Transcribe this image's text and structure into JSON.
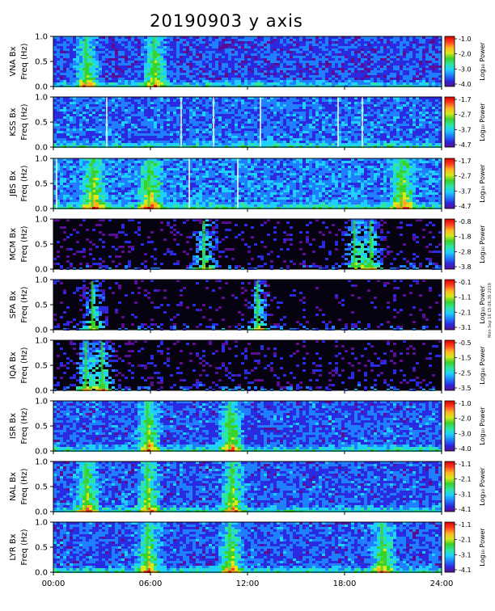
{
  "title": "20190903 y axis",
  "side_note": "Mon Sep 16 15:06:36 2019",
  "chart_data": {
    "type": "heatmap",
    "title": "20190903 y axis",
    "x_tick_labels": [
      "00:00",
      "06:00",
      "12:00",
      "18:00",
      "24:00"
    ],
    "x_ticks_hours": [
      0,
      6,
      12,
      18,
      24
    ],
    "xlim_hours": [
      0,
      24
    ],
    "ylim_hz": [
      0,
      1.0
    ],
    "y_tick_labels": [
      "0.0",
      "0.5",
      "1.0"
    ],
    "y_ticks_hz": [
      0,
      0.5,
      1.0
    ],
    "colorbar_label": "Log₁₀ Power",
    "colormap": [
      "#5a0d92",
      "#2a2ae0",
      "#1f7fff",
      "#1fd0ff",
      "#2ee6a0",
      "#39d12b",
      "#d7e81f",
      "#ffb21f",
      "#ff3b1f",
      "#d80000"
    ],
    "panels": [
      {
        "station": "VNA",
        "label": "VNA Bx",
        "ylabel": "Freq (Hz)",
        "cb_ticks": [
          "-1.0",
          "-2.0",
          "-3.0",
          "-4.0"
        ],
        "cb_range": [
          -4.0,
          -1.0
        ],
        "background_level": 0.18,
        "bright_events_hours": [
          2.0,
          6.2
        ],
        "gap_lines_hours": []
      },
      {
        "station": "KSS",
        "label": "KSS Bx",
        "ylabel": "Freq (Hz)",
        "cb_ticks": [
          "-1.7",
          "-2.7",
          "-3.7",
          "-4.7"
        ],
        "cb_range": [
          -4.7,
          -1.7
        ],
        "background_level": 0.22,
        "bright_events_hours": [],
        "gap_lines_hours": [
          3.3,
          7.9,
          9.9,
          12.8,
          17.6,
          19.1
        ]
      },
      {
        "station": "JBS",
        "label": "JBS Bx",
        "ylabel": "Freq (Hz)",
        "cb_ticks": [
          "-1.7",
          "-2.7",
          "-3.7",
          "-4.7"
        ],
        "cb_range": [
          -4.7,
          -1.7
        ],
        "background_level": 0.25,
        "bright_events_hours": [
          2.4,
          5.9,
          21.5
        ],
        "gap_lines_hours": [
          0.2,
          8.4,
          11.4
        ]
      },
      {
        "station": "MCM",
        "label": "MCM Bx",
        "ylabel": "Freq (Hz)",
        "cb_ticks": [
          "-0.8",
          "-1.8",
          "-2.8",
          "-3.8"
        ],
        "cb_range": [
          -3.8,
          -0.8
        ],
        "background_level": 0.04,
        "bright_events_hours": [
          9.3,
          18.6,
          19.6
        ],
        "gap_lines_hours": []
      },
      {
        "station": "SPA",
        "label": "SPA Bx",
        "ylabel": "Freq (Hz)",
        "cb_ticks": [
          "-0.1",
          "-1.1",
          "-2.1",
          "-3.1"
        ],
        "cb_range": [
          -3.1,
          -0.1
        ],
        "background_level": 0.02,
        "bright_events_hours": [
          2.4,
          12.6
        ],
        "gap_lines_hours": []
      },
      {
        "station": "IQA",
        "label": "IQA Bx",
        "ylabel": "Freq (Hz)",
        "cb_ticks": [
          "-0.5",
          "-1.5",
          "-2.5",
          "-3.5"
        ],
        "cb_range": [
          -3.5,
          -0.5
        ],
        "background_level": 0.05,
        "bright_events_hours": [
          2.0,
          3.0
        ],
        "gap_lines_hours": []
      },
      {
        "station": "ISR",
        "label": "ISR Bx",
        "ylabel": "Freq (Hz)",
        "cb_ticks": [
          "-1.0",
          "-2.0",
          "-3.0",
          "-4.0"
        ],
        "cb_range": [
          -4.0,
          -1.0
        ],
        "background_level": 0.2,
        "bright_events_hours": [
          5.8,
          10.9
        ],
        "gap_lines_hours": []
      },
      {
        "station": "NAL",
        "label": "NAL Bx",
        "ylabel": "Freq (Hz)",
        "cb_ticks": [
          "-1.1",
          "-2.1",
          "-3.1",
          "-4.1"
        ],
        "cb_range": [
          -4.1,
          -1.1
        ],
        "background_level": 0.2,
        "bright_events_hours": [
          2.0,
          5.8,
          11.0
        ],
        "gap_lines_hours": []
      },
      {
        "station": "LYR",
        "label": "LYR Bx",
        "ylabel": "Freq (Hz)",
        "cb_ticks": [
          "-1.1",
          "-2.1",
          "-3.1",
          "-4.1"
        ],
        "cb_range": [
          -4.1,
          -1.1
        ],
        "background_level": 0.2,
        "bright_events_hours": [
          5.8,
          10.9,
          20.3
        ],
        "gap_lines_hours": []
      }
    ]
  }
}
